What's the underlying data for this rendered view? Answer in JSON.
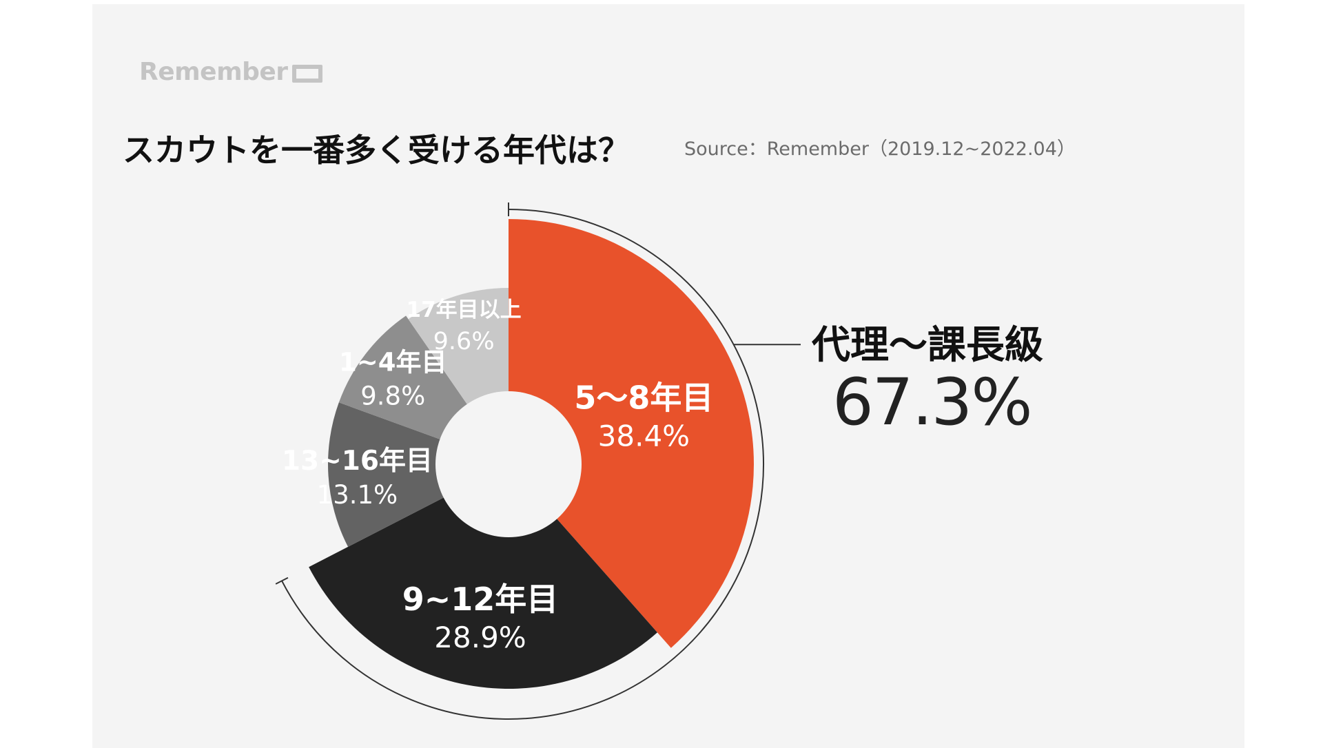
{
  "brand": {
    "logo_text": "Remember"
  },
  "header": {
    "title": "スカウトを一番多く受ける年代は？",
    "source": "Source：Remember（2019.12~2022.04）"
  },
  "callout": {
    "label": "代理〜課長級",
    "value": "67.3%"
  },
  "colors": {
    "background": "#f4f4f4",
    "accent": "#e8522b",
    "dark": "#222222",
    "mid_dark": "#636363",
    "mid": "#8e8e8e",
    "light": "#c8c8c8"
  },
  "chart_data": {
    "type": "pie",
    "variant": "donut",
    "start_angle_deg": 0,
    "direction": "clockwise",
    "slices": [
      {
        "label": "5〜8年目",
        "value": 38.4,
        "display": "38.4%",
        "color": "#e8522b"
      },
      {
        "label": "9~12年目",
        "value": 28.9,
        "display": "28.9%",
        "color": "#222222"
      },
      {
        "label": "13~16年目",
        "value": 13.1,
        "display": "13.1%",
        "color": "#636363"
      },
      {
        "label": "1~4年目",
        "value": 9.8,
        "display": "9.8%",
        "color": "#8e8e8e"
      },
      {
        "label": "17年目以上",
        "value": 9.6,
        "display": "9.6%",
        "color": "#c8c8c8"
      }
    ],
    "highlight": {
      "slices": [
        "5〜8年目",
        "9~12年目"
      ],
      "label": "代理〜課長級",
      "value": "67.3%"
    }
  }
}
